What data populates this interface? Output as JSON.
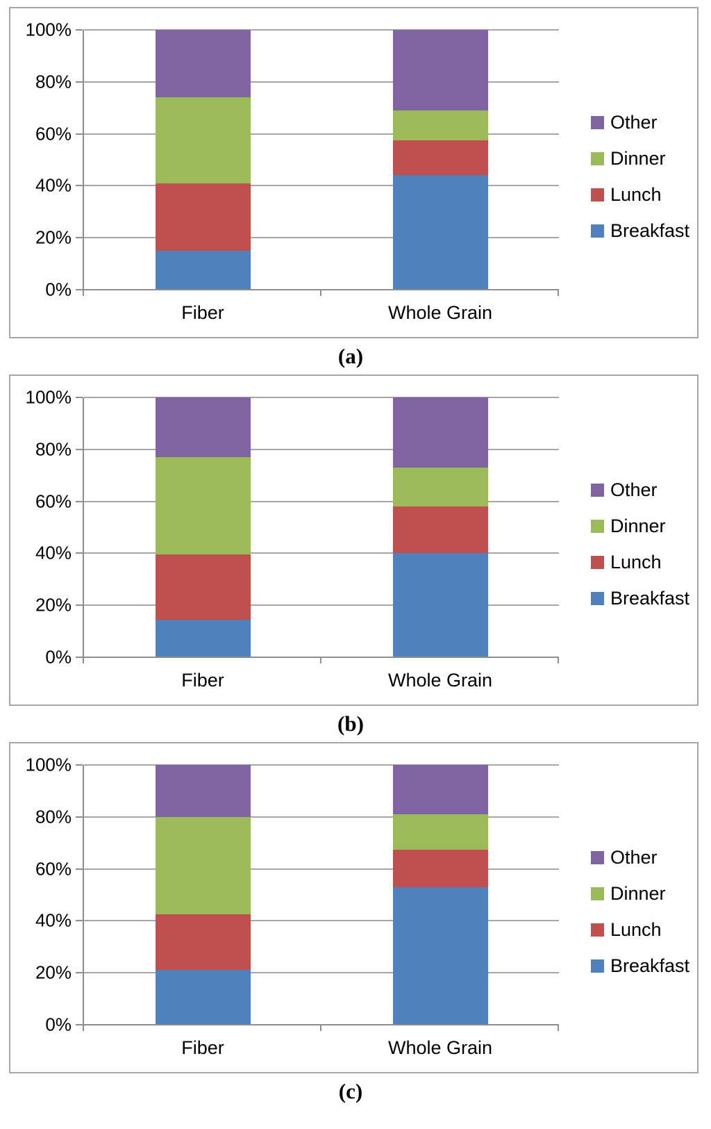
{
  "figure": {
    "background": "#ffffff",
    "captions": {
      "a": "(a)",
      "b": "(b)",
      "c": "(c)"
    }
  },
  "chart_style": {
    "panel_border_color": "#a6a6a6",
    "gridline_color": "#a6a6a6",
    "axis_color": "#8e8e8e",
    "text_color": "#000000"
  },
  "series_colors": {
    "Breakfast": "#4F81BD",
    "Lunch": "#C0504D",
    "Dinner": "#9BBB59",
    "Other": "#8064A2"
  },
  "chart_data": [
    {
      "id": "a",
      "caption": "(a)",
      "type": "bar",
      "stacked": true,
      "units": "percent",
      "categories": [
        "Fiber",
        "Whole Grain"
      ],
      "series": [
        {
          "name": "Breakfast",
          "values": [
            15,
            44
          ]
        },
        {
          "name": "Lunch",
          "values": [
            26,
            13.5
          ]
        },
        {
          "name": "Dinner",
          "values": [
            33,
            11.5
          ]
        },
        {
          "name": "Other",
          "values": [
            26,
            31
          ]
        }
      ],
      "ylim": [
        0,
        100
      ],
      "y_ticks": [
        "0%",
        "20%",
        "40%",
        "60%",
        "80%",
        "100%"
      ],
      "grid": true,
      "legend": [
        "Other",
        "Dinner",
        "Lunch",
        "Breakfast"
      ],
      "legend_position": "right"
    },
    {
      "id": "b",
      "caption": "(b)",
      "type": "bar",
      "stacked": true,
      "units": "percent",
      "categories": [
        "Fiber",
        "Whole Grain"
      ],
      "series": [
        {
          "name": "Breakfast",
          "values": [
            14.5,
            40
          ]
        },
        {
          "name": "Lunch",
          "values": [
            25,
            18
          ]
        },
        {
          "name": "Dinner",
          "values": [
            37.5,
            15
          ]
        },
        {
          "name": "Other",
          "values": [
            23,
            27
          ]
        }
      ],
      "ylim": [
        0,
        100
      ],
      "y_ticks": [
        "0%",
        "20%",
        "40%",
        "60%",
        "80%",
        "100%"
      ],
      "grid": true,
      "legend": [
        "Other",
        "Dinner",
        "Lunch",
        "Breakfast"
      ],
      "legend_position": "right"
    },
    {
      "id": "c",
      "caption": "(c)",
      "type": "bar",
      "stacked": true,
      "units": "percent",
      "categories": [
        "Fiber",
        "Whole Grain"
      ],
      "series": [
        {
          "name": "Breakfast",
          "values": [
            21,
            53
          ]
        },
        {
          "name": "Lunch",
          "values": [
            21.5,
            14.5
          ]
        },
        {
          "name": "Dinner",
          "values": [
            37.5,
            13.5
          ]
        },
        {
          "name": "Other",
          "values": [
            20,
            19
          ]
        }
      ],
      "ylim": [
        0,
        100
      ],
      "y_ticks": [
        "0%",
        "20%",
        "40%",
        "60%",
        "80%",
        "100%"
      ],
      "grid": true,
      "legend": [
        "Other",
        "Dinner",
        "Lunch",
        "Breakfast"
      ],
      "legend_position": "right"
    }
  ]
}
